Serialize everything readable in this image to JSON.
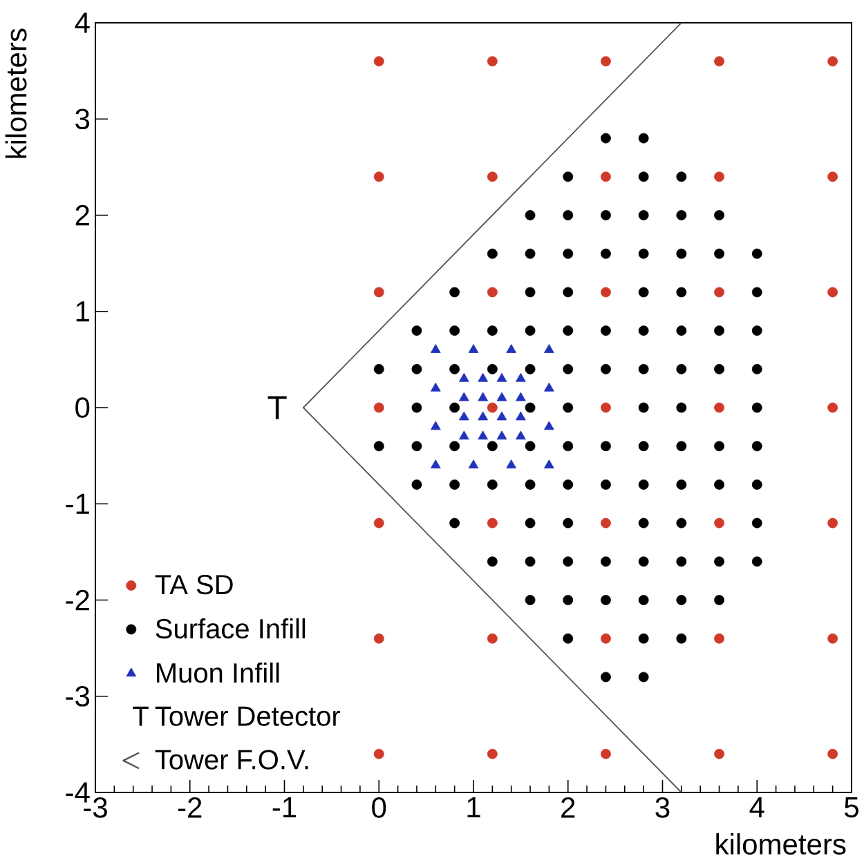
{
  "chart_data": {
    "type": "scatter",
    "xlabel": "kilometers",
    "ylabel": "kilometers",
    "xlim": [
      -3,
      5
    ],
    "ylim": [
      -4,
      4
    ],
    "xticks": [
      -3,
      -2,
      -1,
      0,
      1,
      2,
      3,
      4,
      5
    ],
    "yticks": [
      -4,
      -3,
      -2,
      -1,
      0,
      1,
      2,
      3,
      4
    ],
    "grid": false,
    "legend": "bottom left",
    "annotations": [
      "T",
      "Tower Detector"
    ],
    "series": [
      {
        "name": "TA SD",
        "color": "#d03a2a",
        "marker": "circle",
        "x": [
          0,
          1.2,
          2.4,
          3.6,
          4.8,
          0,
          1.2,
          2.4,
          3.6,
          4.8,
          0,
          1.2,
          2.4,
          3.6,
          4.8,
          0,
          1.2,
          2.4,
          3.6,
          4.8,
          0,
          1.2,
          2.4,
          3.6,
          4.8,
          0,
          1.2,
          2.4,
          3.6,
          4.8,
          0,
          1.2,
          2.4,
          3.6,
          4.8
        ],
        "values": [
          3.6,
          3.6,
          3.6,
          3.6,
          3.6,
          2.4,
          2.4,
          2.4,
          2.4,
          2.4,
          1.2,
          1.2,
          1.2,
          1.2,
          1.2,
          0,
          0,
          0,
          0,
          0,
          -1.2,
          -1.2,
          -1.2,
          -1.2,
          -1.2,
          -2.4,
          -2.4,
          -2.4,
          -2.4,
          -2.4,
          -3.6,
          -3.6,
          -3.6,
          -3.6,
          -3.6
        ]
      },
      {
        "name": "Surface Infill",
        "color": "#000000",
        "marker": "circle",
        "x": [
          2.4,
          2.8,
          2.0,
          2.8,
          3.2,
          1.6,
          2.0,
          2.4,
          2.8,
          3.2,
          3.6,
          1.2,
          1.6,
          2.0,
          2.4,
          2.8,
          3.2,
          3.6,
          4.0,
          0.8,
          1.6,
          2.0,
          2.8,
          3.2,
          4.0,
          0.4,
          0.8,
          1.2,
          1.6,
          2.0,
          2.4,
          2.8,
          3.2,
          3.6,
          4.0,
          0,
          0.4,
          0.8,
          1.2,
          1.6,
          2.0,
          2.4,
          2.8,
          3.2,
          3.6,
          4.0,
          0.4,
          0.8,
          1.6,
          2.0,
          2.8,
          3.2,
          4.0,
          0,
          0.4,
          0.8,
          1.2,
          1.6,
          2.0,
          2.4,
          2.8,
          3.2,
          3.6,
          4.0,
          0.4,
          0.8,
          1.2,
          1.6,
          2.0,
          2.4,
          2.8,
          3.2,
          3.6,
          4.0,
          0.8,
          1.6,
          2.0,
          2.8,
          3.2,
          4.0,
          1.2,
          1.6,
          2.0,
          2.4,
          2.8,
          3.2,
          3.6,
          4.0,
          1.6,
          2.0,
          2.4,
          2.8,
          3.2,
          3.6,
          2.0,
          2.8,
          3.2,
          2.4,
          2.8
        ],
        "values": [
          2.8,
          2.8,
          2.4,
          2.4,
          2.4,
          2.0,
          2.0,
          2.0,
          2.0,
          2.0,
          2.0,
          1.6,
          1.6,
          1.6,
          1.6,
          1.6,
          1.6,
          1.6,
          1.6,
          1.2,
          1.2,
          1.2,
          1.2,
          1.2,
          1.2,
          0.8,
          0.8,
          0.8,
          0.8,
          0.8,
          0.8,
          0.8,
          0.8,
          0.8,
          0.8,
          0.4,
          0.4,
          0.4,
          0.4,
          0.4,
          0.4,
          0.4,
          0.4,
          0.4,
          0.4,
          0.4,
          0,
          0,
          0,
          0,
          0,
          0,
          0,
          -0.4,
          -0.4,
          -0.4,
          -0.4,
          -0.4,
          -0.4,
          -0.4,
          -0.4,
          -0.4,
          -0.4,
          -0.4,
          -0.8,
          -0.8,
          -0.8,
          -0.8,
          -0.8,
          -0.8,
          -0.8,
          -0.8,
          -0.8,
          -0.8,
          -1.2,
          -1.2,
          -1.2,
          -1.2,
          -1.2,
          -1.2,
          -1.6,
          -1.6,
          -1.6,
          -1.6,
          -1.6,
          -1.6,
          -1.6,
          -1.6,
          -2.0,
          -2.0,
          -2.0,
          -2.0,
          -2.0,
          -2.0,
          -2.4,
          -2.4,
          -2.4,
          -2.8,
          -2.8
        ]
      },
      {
        "name": "Muon Infill",
        "color": "#2233bb",
        "marker": "triangle",
        "x": [
          0.6,
          1.0,
          1.4,
          1.8,
          0.9,
          1.1,
          1.3,
          1.5,
          0.6,
          1.8,
          0.9,
          1.1,
          1.3,
          1.5,
          0.9,
          1.1,
          1.3,
          1.5,
          0.6,
          1.8,
          0.9,
          1.1,
          1.3,
          1.5,
          0.6,
          1.0,
          1.4,
          1.8
        ],
        "values": [
          0.6,
          0.6,
          0.6,
          0.6,
          0.3,
          0.3,
          0.3,
          0.3,
          0.2,
          0.2,
          0.1,
          0.1,
          0.1,
          0.1,
          -0.1,
          -0.1,
          -0.1,
          -0.1,
          -0.2,
          -0.2,
          -0.3,
          -0.3,
          -0.3,
          -0.3,
          -0.6,
          -0.6,
          -0.6,
          -0.6
        ]
      },
      {
        "name": "Tower F.O.V.",
        "type": "line",
        "color": "#555555",
        "line_style": "solid",
        "marker": "none",
        "x": [
          3.2,
          -0.8,
          3.2
        ],
        "values": [
          4,
          0,
          -4
        ]
      }
    ]
  }
}
